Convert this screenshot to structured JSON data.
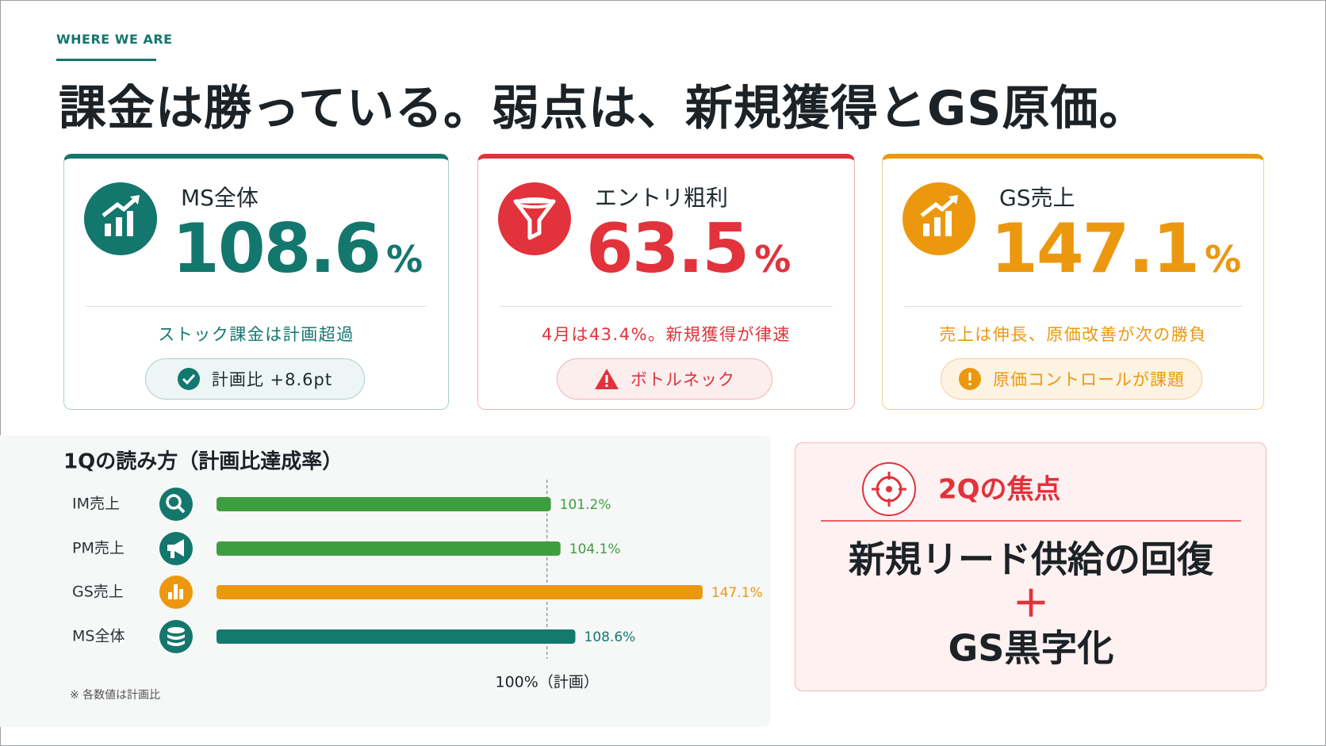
{
  "header": {
    "eyebrow": "WHERE WE ARE",
    "title": "課金は勝っている。弱点は、新規獲得とGS原価。"
  },
  "cards": [
    {
      "label": "MS全体",
      "value": 108.6,
      "unit": "%",
      "note": "ストック課金は計画超過",
      "badge": "計画比 +8.6pt",
      "color": "#13776d"
    },
    {
      "label": "エントリ粗利",
      "value": 63.5,
      "unit": "%",
      "note": "4月は43.4%。新規獲得が律速",
      "badge": "ボトルネック",
      "color": "#e2323b"
    },
    {
      "label": "GS売上",
      "value": 147.1,
      "unit": "%",
      "note": "売上は伸長、原価改善が次の勝負",
      "badge": "原価コントロールが課題",
      "color": "#ec980f"
    }
  ],
  "chart_data": {
    "type": "bar",
    "orientation": "horizontal",
    "title": "1Qの読み方（計画比達成率）",
    "categories": [
      "IM売上",
      "PM売上",
      "GS売上",
      "MS全体"
    ],
    "values": [
      101.2,
      104.1,
      147.1,
      108.6
    ],
    "value_labels": [
      "101.2%",
      "104.1%",
      "147.1%",
      "108.6%"
    ],
    "colors": [
      "#3e9e3f",
      "#3e9e3f",
      "#ec980f",
      "#137a70"
    ],
    "xlim": [
      0,
      150
    ],
    "reference_line": {
      "value": 100,
      "label": "100%（計画）"
    },
    "note": "※ 各数値は計画比"
  },
  "focus": {
    "title": "2Qの焦点",
    "lines": [
      "新規リード供給の回復",
      "＋",
      "GS黒字化"
    ]
  }
}
